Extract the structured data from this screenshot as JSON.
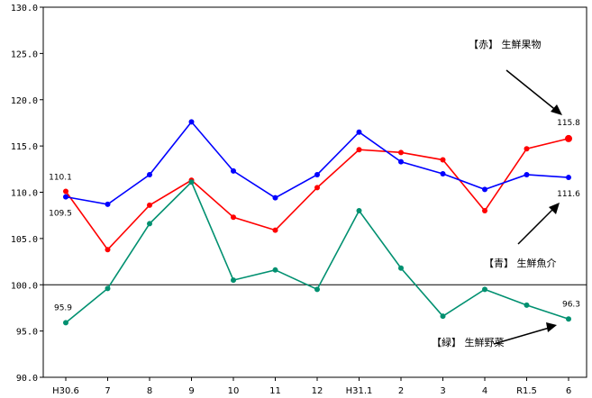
{
  "chart_data": {
    "type": "line",
    "categories": [
      "H30.6",
      "7",
      "8",
      "9",
      "10",
      "11",
      "12",
      "H31.1",
      "2",
      "3",
      "4",
      "R1.5",
      "6"
    ],
    "ylim": [
      90.0,
      130.0
    ],
    "yticks": [
      "90.0",
      "95.0",
      "100.0",
      "105.0",
      "110.0",
      "115.0",
      "120.0",
      "125.0",
      "130.0"
    ],
    "reference_line": 100.0,
    "grid": false,
    "series": [
      {
        "name": "【赤】 生鮮果物",
        "color": "#ff0000",
        "values": [
          110.1,
          103.8,
          108.6,
          111.3,
          107.3,
          105.9,
          110.5,
          114.6,
          114.3,
          113.5,
          108.0,
          114.7,
          115.8
        ],
        "labels": [
          {
            "index": 0,
            "text": "110.1"
          },
          {
            "index": 12,
            "text": "115.8"
          }
        ]
      },
      {
        "name": "【青】 生鮮魚介",
        "color": "#0000ff",
        "values": [
          109.5,
          108.7,
          111.9,
          117.6,
          112.3,
          109.4,
          111.9,
          116.5,
          113.3,
          112.0,
          110.3,
          111.9,
          111.6
        ],
        "labels": [
          {
            "index": 0,
            "text": "109.5"
          },
          {
            "index": 12,
            "text": "111.6"
          }
        ]
      },
      {
        "name": "【緑】 生鮮野菜",
        "color": "#009070",
        "values": [
          95.9,
          99.6,
          106.6,
          111.1,
          100.5,
          101.6,
          99.5,
          108.0,
          101.8,
          96.6,
          99.5,
          97.8,
          96.3
        ],
        "labels": [
          {
            "index": 0,
            "text": "95.9"
          },
          {
            "index": 12,
            "text": "96.3"
          }
        ]
      }
    ]
  }
}
